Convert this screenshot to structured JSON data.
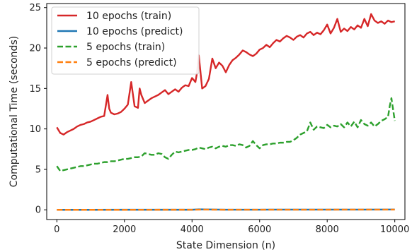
{
  "chart_data": {
    "type": "line",
    "xlabel": "State Dimension (n)",
    "ylabel": "Computational Time (seconds)",
    "xlim": [
      -300,
      10300
    ],
    "ylim": [
      -1.2,
      25.5
    ],
    "xticks": [
      0,
      2000,
      4000,
      6000,
      8000,
      10000
    ],
    "yticks": [
      0,
      5,
      10,
      15,
      20,
      25
    ],
    "grid": false,
    "legend_position": "top-left",
    "series": [
      {
        "name": "10 epochs (train)",
        "color": "#d62728",
        "dash": "solid",
        "x": [
          0,
          100,
          200,
          300,
          400,
          500,
          600,
          700,
          800,
          900,
          1000,
          1100,
          1200,
          1300,
          1400,
          1500,
          1550,
          1600,
          1700,
          1800,
          1900,
          2000,
          2100,
          2200,
          2300,
          2400,
          2450,
          2500,
          2600,
          2700,
          2800,
          2900,
          3000,
          3100,
          3200,
          3300,
          3400,
          3500,
          3600,
          3700,
          3800,
          3900,
          4000,
          4100,
          4150,
          4200,
          4300,
          4400,
          4500,
          4600,
          4700,
          4800,
          4900,
          5000,
          5100,
          5200,
          5300,
          5400,
          5500,
          5600,
          5700,
          5800,
          5900,
          6000,
          6100,
          6200,
          6300,
          6400,
          6500,
          6600,
          6700,
          6800,
          6900,
          7000,
          7100,
          7200,
          7300,
          7400,
          7500,
          7600,
          7700,
          7800,
          7900,
          8000,
          8100,
          8200,
          8300,
          8400,
          8500,
          8600,
          8700,
          8800,
          8900,
          9000,
          9100,
          9200,
          9300,
          9400,
          9500,
          9600,
          9700,
          9800,
          9900,
          10000
        ],
        "y": [
          10.2,
          9.5,
          9.3,
          9.6,
          9.8,
          10.0,
          10.3,
          10.5,
          10.6,
          10.8,
          10.9,
          11.1,
          11.3,
          11.5,
          11.6,
          14.2,
          12.5,
          12.0,
          11.8,
          11.9,
          12.1,
          12.5,
          13.0,
          15.8,
          12.8,
          12.6,
          15.0,
          14.2,
          13.2,
          13.5,
          13.8,
          14.0,
          14.2,
          14.5,
          14.8,
          14.3,
          14.6,
          14.9,
          14.6,
          15.1,
          15.4,
          15.3,
          16.3,
          15.8,
          17.0,
          19.1,
          15.0,
          15.3,
          16.2,
          18.7,
          17.5,
          18.2,
          17.8,
          17.0,
          17.9,
          18.5,
          18.8,
          19.2,
          19.7,
          19.5,
          19.2,
          19.0,
          19.3,
          19.8,
          20.0,
          20.4,
          20.1,
          20.6,
          21.0,
          20.8,
          21.2,
          21.5,
          21.3,
          21.0,
          21.4,
          21.6,
          21.3,
          21.8,
          22.0,
          21.6,
          21.9,
          21.7,
          22.2,
          22.9,
          21.8,
          22.5,
          23.6,
          22.0,
          22.4,
          22.1,
          22.6,
          22.3,
          22.8,
          22.5,
          23.6,
          22.7,
          24.2,
          23.4,
          23.1,
          23.3,
          23.0,
          23.4,
          23.2,
          23.3
        ]
      },
      {
        "name": "10 epochs (predict)",
        "color": "#1f77b4",
        "dash": "solid",
        "x": [
          0,
          1000,
          2000,
          3000,
          4000,
          4200,
          5000,
          6000,
          7000,
          8000,
          9000,
          10000
        ],
        "y": [
          0.0,
          0.0,
          0.01,
          0.01,
          0.01,
          0.06,
          0.02,
          0.02,
          0.03,
          0.03,
          0.03,
          0.04
        ]
      },
      {
        "name": "5 epochs (train)",
        "color": "#2ca02c",
        "dash": "dashed",
        "x": [
          0,
          100,
          200,
          300,
          400,
          500,
          600,
          700,
          800,
          900,
          1000,
          1100,
          1200,
          1300,
          1400,
          1500,
          1600,
          1700,
          1800,
          1900,
          2000,
          2100,
          2200,
          2300,
          2400,
          2500,
          2600,
          2700,
          2800,
          2900,
          3000,
          3100,
          3200,
          3300,
          3400,
          3500,
          3600,
          3700,
          3800,
          3900,
          4000,
          4100,
          4200,
          4300,
          4400,
          4500,
          4600,
          4700,
          4800,
          4900,
          5000,
          5100,
          5200,
          5300,
          5400,
          5500,
          5600,
          5700,
          5800,
          5900,
          6000,
          6100,
          6200,
          6300,
          6400,
          6500,
          6600,
          6700,
          6800,
          6900,
          7000,
          7100,
          7200,
          7300,
          7400,
          7500,
          7600,
          7700,
          7800,
          7900,
          8000,
          8100,
          8200,
          8300,
          8400,
          8500,
          8600,
          8700,
          8800,
          8900,
          9000,
          9100,
          9200,
          9300,
          9400,
          9500,
          9600,
          9700,
          9800,
          9850,
          9900,
          10000
        ],
        "y": [
          5.4,
          4.8,
          4.9,
          5.0,
          5.1,
          5.2,
          5.3,
          5.4,
          5.4,
          5.5,
          5.6,
          5.7,
          5.7,
          5.8,
          5.9,
          5.9,
          6.0,
          6.0,
          6.1,
          6.2,
          6.3,
          6.3,
          6.4,
          6.5,
          6.5,
          6.6,
          7.0,
          6.9,
          6.8,
          6.8,
          7.0,
          6.9,
          6.5,
          6.3,
          6.8,
          7.2,
          7.1,
          7.2,
          7.3,
          7.4,
          7.4,
          7.5,
          7.7,
          7.6,
          7.5,
          7.7,
          7.8,
          7.6,
          7.8,
          7.9,
          7.8,
          8.0,
          8.0,
          7.9,
          8.1,
          8.0,
          7.7,
          7.9,
          8.5,
          8.0,
          7.6,
          8.0,
          8.1,
          8.1,
          8.2,
          8.2,
          8.3,
          8.3,
          8.4,
          8.4,
          8.6,
          8.9,
          9.3,
          9.5,
          9.7,
          10.8,
          9.9,
          10.3,
          10.2,
          10.1,
          10.5,
          10.2,
          10.4,
          10.3,
          10.6,
          10.2,
          10.8,
          10.3,
          10.9,
          10.2,
          11.1,
          10.6,
          10.4,
          10.8,
          10.3,
          10.6,
          11.0,
          11.2,
          11.5,
          12.8,
          13.8,
          11.0
        ]
      },
      {
        "name": "5 epochs (predict)",
        "color": "#ff7f0e",
        "dash": "dashed",
        "x": [
          0,
          1000,
          2000,
          3000,
          4000,
          4300,
          5000,
          6000,
          7000,
          8000,
          9000,
          10000
        ],
        "y": [
          0.0,
          0.0,
          0.0,
          0.01,
          0.01,
          0.03,
          0.01,
          0.02,
          0.02,
          0.02,
          0.03,
          0.03
        ]
      }
    ]
  }
}
